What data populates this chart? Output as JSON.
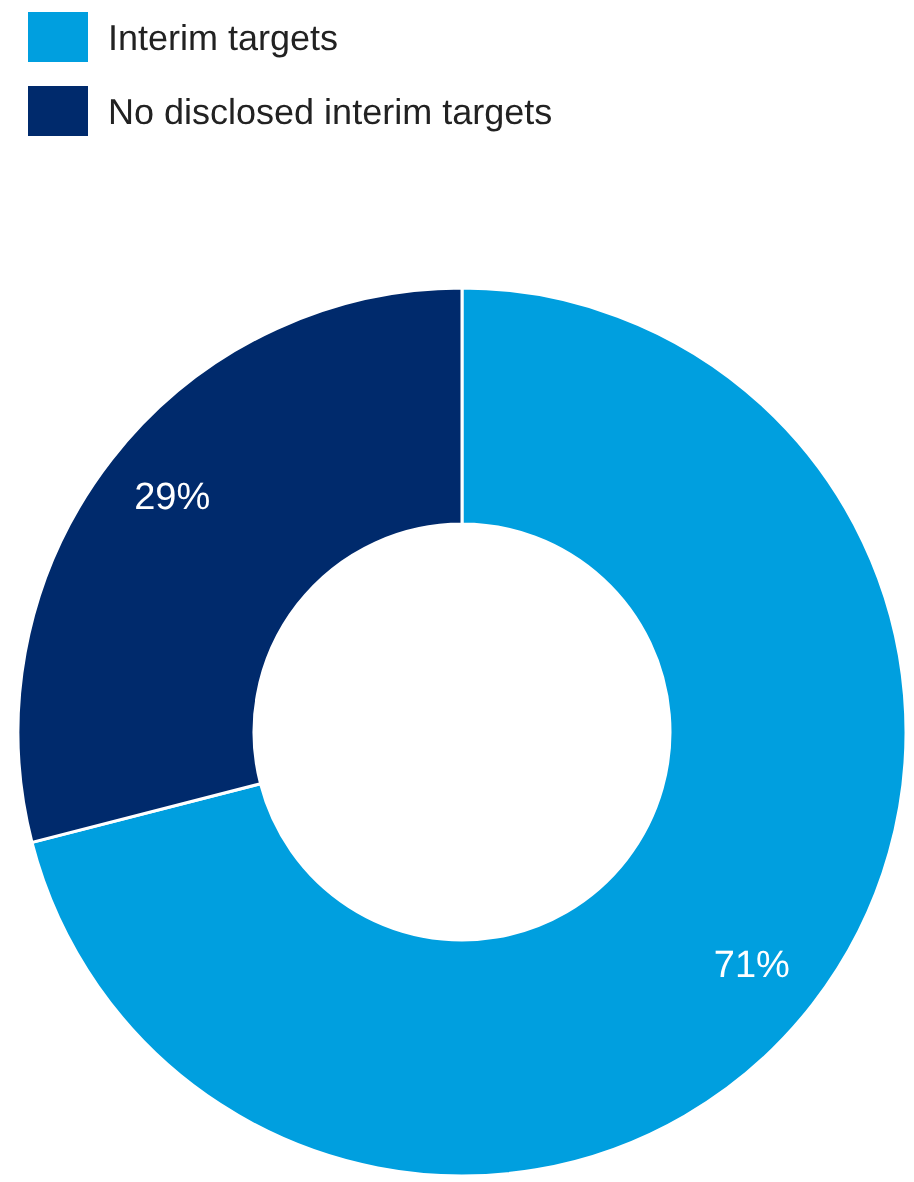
{
  "chart_data": {
    "type": "donut",
    "categories": [
      "Interim targets",
      "No disclosed interim targets"
    ],
    "values": [
      71,
      29
    ],
    "colors": [
      "#009fdf",
      "#002a6c"
    ],
    "value_labels": [
      "71%",
      "29%"
    ],
    "legend": "top left"
  }
}
